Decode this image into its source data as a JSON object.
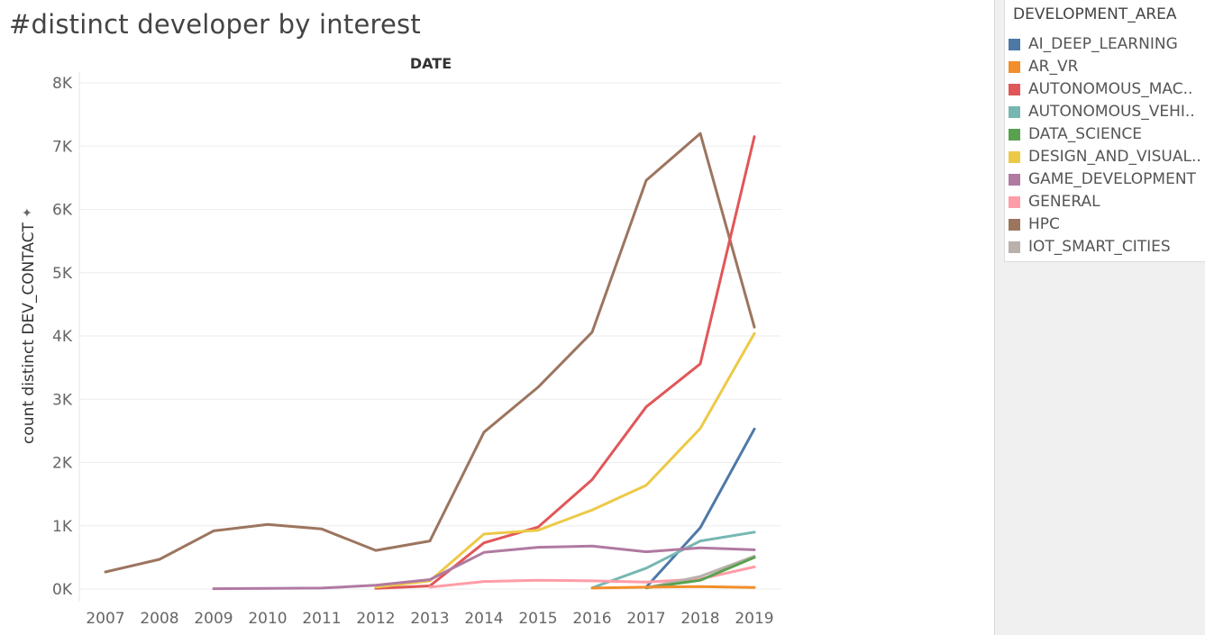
{
  "page": {
    "title": "#distinct developer by interest"
  },
  "legend": {
    "title": "DEVELOPMENT_AREA",
    "items": [
      {
        "label": "AI_DEEP_LEARNING",
        "color": "#4e79a7"
      },
      {
        "label": "AR_VR",
        "color": "#f28e2b"
      },
      {
        "label": "AUTONOMOUS_MAC..",
        "color": "#e15759"
      },
      {
        "label": "AUTONOMOUS_VEHI..",
        "color": "#76b7b2"
      },
      {
        "label": "DATA_SCIENCE",
        "color": "#59a14f"
      },
      {
        "label": "DESIGN_AND_VISUAL..",
        "color": "#edc948"
      },
      {
        "label": "GAME_DEVELOPMENT",
        "color": "#b07aa1"
      },
      {
        "label": "GENERAL",
        "color": "#ff9da7"
      },
      {
        "label": "HPC",
        "color": "#9c755f"
      },
      {
        "label": "IOT_SMART_CITIES",
        "color": "#bab0ac"
      }
    ]
  },
  "chart_data": {
    "type": "line",
    "title": "#distinct developer by interest",
    "column_header": "DATE",
    "xlabel": "",
    "ylabel": "count distinct DEV_CONTACT",
    "categories": [
      "2007",
      "2008",
      "2009",
      "2010",
      "2011",
      "2012",
      "2013",
      "2014",
      "2015",
      "2016",
      "2017",
      "2018",
      "2019"
    ],
    "y_ticks": [
      "0K",
      "1K",
      "2K",
      "3K",
      "4K",
      "5K",
      "6K",
      "7K",
      "8K"
    ],
    "ylim": [
      0,
      8000
    ],
    "grid": true,
    "legend_position": "right",
    "series": [
      {
        "name": "HPC",
        "color": "#9c755f",
        "values": [
          270,
          470,
          920,
          1020,
          950,
          610,
          760,
          2480,
          3190,
          4060,
          6460,
          7200,
          4140
        ]
      },
      {
        "name": "AUTONOMOUS_MAC..",
        "color": "#e15759",
        "values": [
          null,
          null,
          null,
          null,
          null,
          10,
          50,
          730,
          980,
          1730,
          2880,
          3560,
          7150
        ]
      },
      {
        "name": "DESIGN_AND_VISUAL..",
        "color": "#edc948",
        "values": [
          null,
          null,
          null,
          null,
          null,
          30,
          130,
          870,
          930,
          1250,
          1640,
          2540,
          4040
        ]
      },
      {
        "name": "AI_DEEP_LEARNING",
        "color": "#4e79a7",
        "values": [
          null,
          null,
          null,
          null,
          null,
          null,
          null,
          null,
          null,
          null,
          30,
          970,
          2530
        ]
      },
      {
        "name": "AUTONOMOUS_VEHI..",
        "color": "#76b7b2",
        "values": [
          null,
          null,
          null,
          null,
          null,
          null,
          null,
          null,
          null,
          20,
          330,
          760,
          900
        ]
      },
      {
        "name": "GAME_DEVELOPMENT",
        "color": "#b07aa1",
        "values": [
          null,
          null,
          5,
          10,
          15,
          60,
          150,
          580,
          660,
          680,
          590,
          650,
          620
        ]
      },
      {
        "name": "GENERAL",
        "color": "#ff9da7",
        "values": [
          null,
          null,
          null,
          null,
          null,
          null,
          30,
          120,
          140,
          130,
          110,
          160,
          350
        ]
      },
      {
        "name": "IOT_SMART_CITIES",
        "color": "#bab0ac",
        "values": [
          null,
          null,
          null,
          null,
          null,
          null,
          null,
          null,
          null,
          null,
          20,
          200,
          520
        ]
      },
      {
        "name": "DATA_SCIENCE",
        "color": "#59a14f",
        "values": [
          null,
          null,
          null,
          null,
          null,
          null,
          null,
          null,
          null,
          null,
          20,
          140,
          500
        ]
      },
      {
        "name": "AR_VR",
        "color": "#f28e2b",
        "values": [
          null,
          null,
          null,
          null,
          null,
          null,
          null,
          null,
          null,
          15,
          30,
          40,
          25
        ]
      }
    ]
  }
}
